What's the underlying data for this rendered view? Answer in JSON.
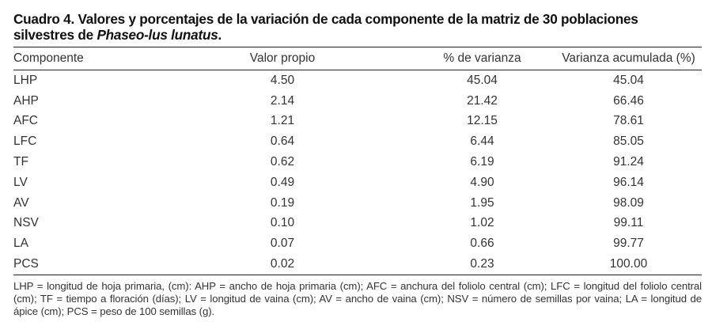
{
  "caption": {
    "prefix": "Cuadro 4. Valores y porcentajes de la variación de cada componente de la matriz de 30 poblaciones silvestres de ",
    "species": "Phaseo-lus lunatus",
    "suffix": "."
  },
  "table": {
    "headers": [
      "Componente",
      "Valor propio",
      "% de varianza",
      "Varianza acumulada (%)"
    ],
    "rows": [
      [
        "LHP",
        "4.50",
        "45.04",
        "45.04"
      ],
      [
        "AHP",
        "2.14",
        "21.42",
        "66.46"
      ],
      [
        "AFC",
        "1.21",
        "12.15",
        "78.61"
      ],
      [
        "LFC",
        "0.64",
        "6.44",
        "85.05"
      ],
      [
        "TF",
        "0.62",
        "6.19",
        "91.24"
      ],
      [
        "LV",
        "0.49",
        "4.90",
        "96.14"
      ],
      [
        "AV",
        "0.19",
        "1.95",
        "98.09"
      ],
      [
        "NSV",
        "0.10",
        "1.02",
        "99.11"
      ],
      [
        "LA",
        "0.07",
        "0.66",
        "99.77"
      ],
      [
        "PCS",
        "0.02",
        "0.23",
        "100.00"
      ]
    ]
  },
  "footnote": "LHP = longitud de hoja primaria, (cm): AHP = ancho de hoja primaria (cm); AFC = anchura del foliolo central (cm); LFC = longitud del foliolo central (cm); TF = tiempo a floración (días); LV = longitud de  vaina (cm); AV = ancho de vaina (cm); NSV = número de semillas por vaina; LA = longitud de ápice (cm); PCS = peso de 100 semillas (g)."
}
